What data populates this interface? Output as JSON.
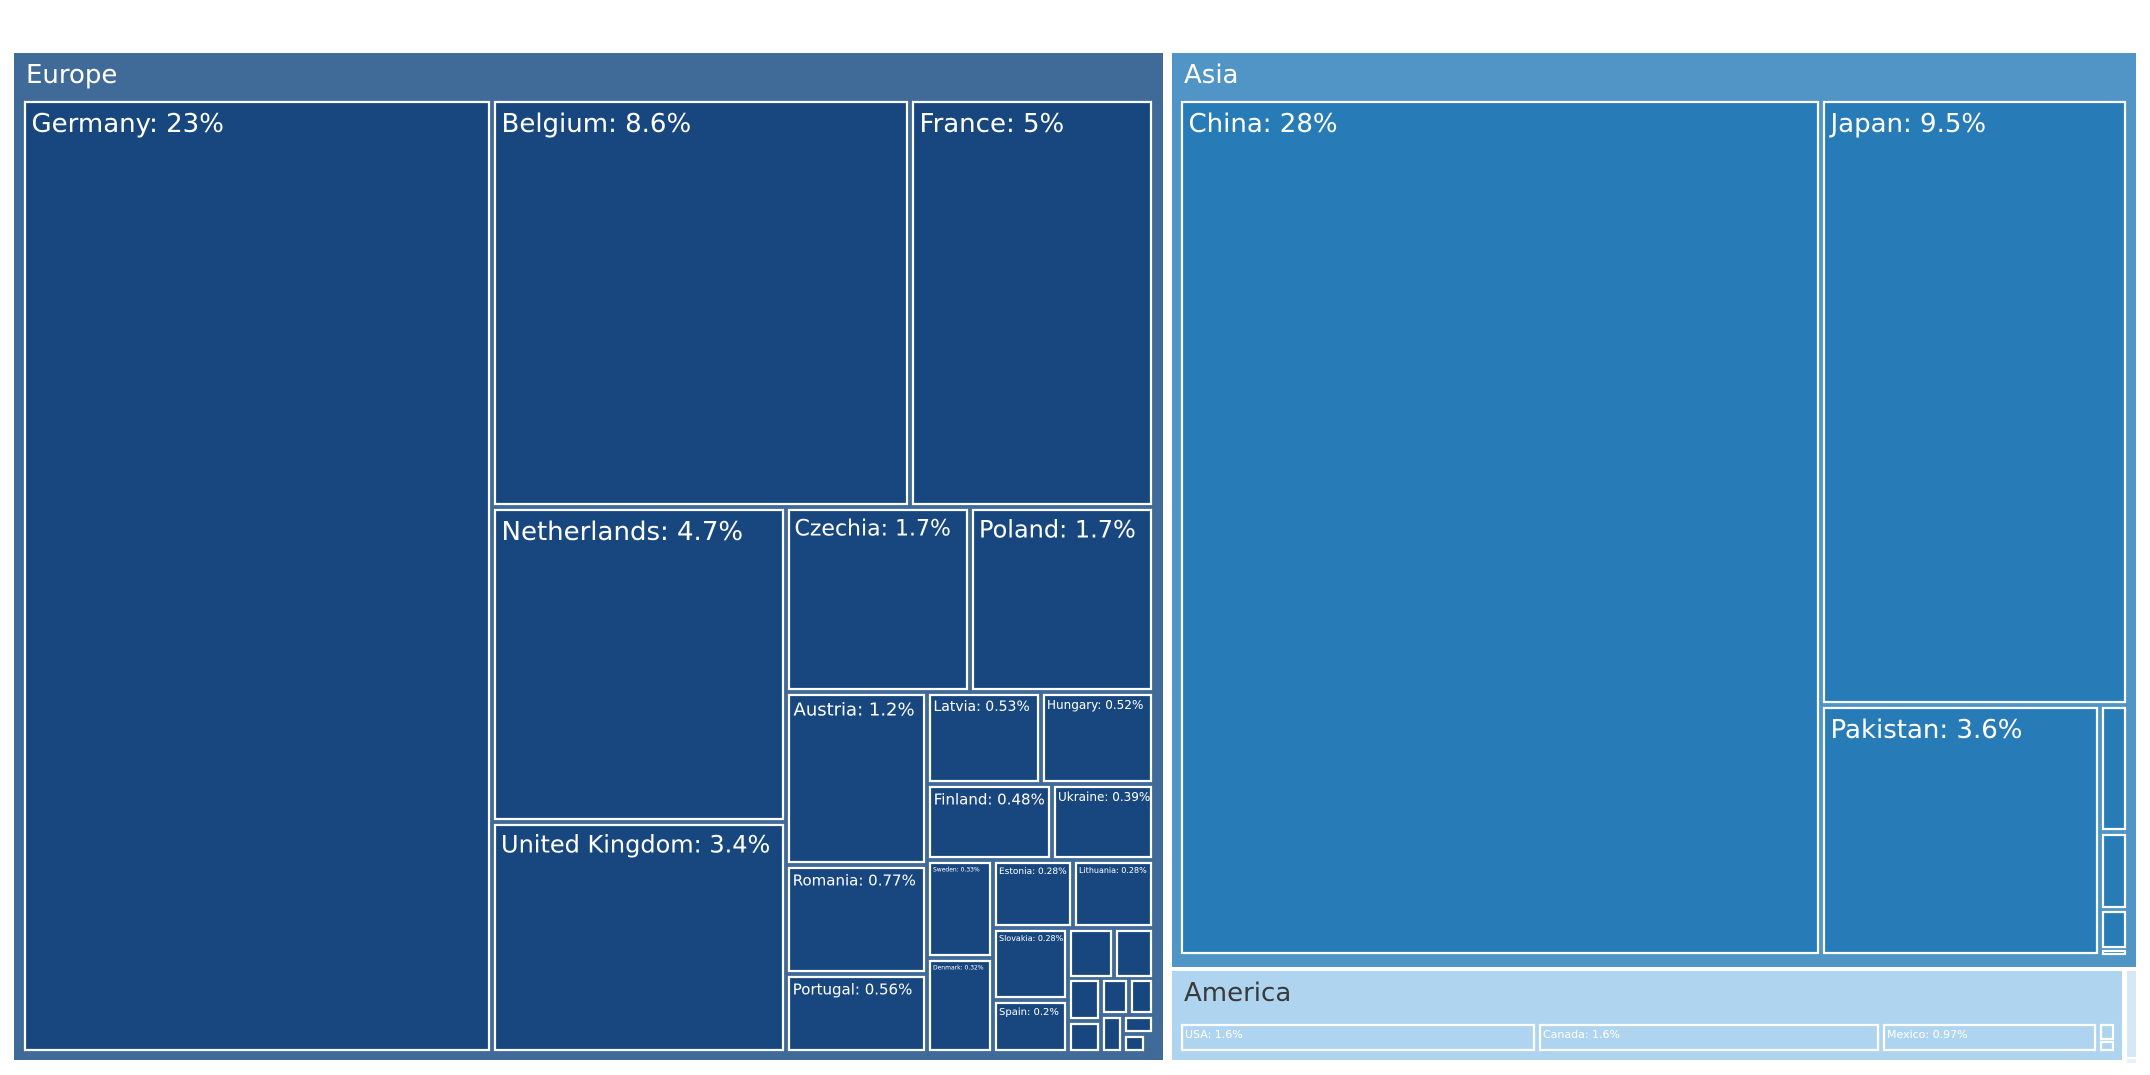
{
  "chart_data": {
    "type": "treemap",
    "unit": "%",
    "groups": [
      {
        "name": "Europe",
        "color": "#406a98",
        "cell_color": "#17477e",
        "label_color": "#ffffff",
        "items": [
          {
            "name": "Germany",
            "value": 23,
            "label": "Germany: 23%"
          },
          {
            "name": "Belgium",
            "value": 8.6,
            "label": "Belgium: 8.6%"
          },
          {
            "name": "France",
            "value": 5,
            "label": "France: 5%"
          },
          {
            "name": "Netherlands",
            "value": 4.7,
            "label": "Netherlands: 4.7%"
          },
          {
            "name": "Czechia",
            "value": 1.7,
            "label": "Czechia: 1.7%"
          },
          {
            "name": "Poland",
            "value": 1.7,
            "label": "Poland: 1.7%"
          },
          {
            "name": "United Kingdom",
            "value": 3.4,
            "label": "United Kingdom: 3.4%"
          },
          {
            "name": "Austria",
            "value": 1.2,
            "label": "Austria: 1.2%"
          },
          {
            "name": "Latvia",
            "value": 0.53,
            "label": "Latvia: 0.53%"
          },
          {
            "name": "Hungary",
            "value": 0.52,
            "label": "Hungary: 0.52%"
          },
          {
            "name": "Finland",
            "value": 0.48,
            "label": "Finland: 0.48%"
          },
          {
            "name": "Ukraine",
            "value": 0.39,
            "label": "Ukraine: 0.39%"
          },
          {
            "name": "Romania",
            "value": 0.77,
            "label": "Romania: 0.77%"
          },
          {
            "name": "Portugal",
            "value": 0.56,
            "label": "Portugal: 0.56%"
          },
          {
            "name": "Sweden",
            "value": 0.33,
            "label": "Sweden: 0.33%"
          },
          {
            "name": "Denmark",
            "value": 0.32,
            "label": "Denmark: 0.32%"
          },
          {
            "name": "Estonia",
            "value": 0.28,
            "label": "Estonia: 0.28%"
          },
          {
            "name": "Lithuania",
            "value": 0.28,
            "label": "Lithuania: 0.28%"
          },
          {
            "name": "Slovakia",
            "value": 0.28,
            "label": "Slovakia: 0.28%"
          },
          {
            "name": "Spain",
            "value": 0.2,
            "label": "Spain: 0.2%"
          },
          {
            "name": "",
            "value": null,
            "label": ""
          },
          {
            "name": "",
            "value": null,
            "label": ""
          },
          {
            "name": "",
            "value": null,
            "label": ""
          },
          {
            "name": "",
            "value": null,
            "label": ""
          },
          {
            "name": "",
            "value": null,
            "label": ""
          },
          {
            "name": "",
            "value": null,
            "label": ""
          },
          {
            "name": "",
            "value": null,
            "label": ""
          },
          {
            "name": "",
            "value": null,
            "label": ""
          },
          {
            "name": "",
            "value": null,
            "label": ""
          }
        ]
      },
      {
        "name": "Asia",
        "color": "#5195c6",
        "cell_color": "#277cb7",
        "label_color": "#ffffff",
        "items": [
          {
            "name": "China",
            "value": 28,
            "label": "China: 28%"
          },
          {
            "name": "Japan",
            "value": 9.5,
            "label": "Japan: 9.5%"
          },
          {
            "name": "Pakistan",
            "value": 3.6,
            "label": "Pakistan: 3.6%"
          },
          {
            "name": "",
            "value": null,
            "label": ""
          },
          {
            "name": "",
            "value": null,
            "label": ""
          },
          {
            "name": "",
            "value": null,
            "label": ""
          },
          {
            "name": "",
            "value": null,
            "label": ""
          }
        ]
      },
      {
        "name": "America",
        "color": "#aed4ef",
        "cell_color": "#aed4ef",
        "label_color": "#3a3a3a",
        "items": [
          {
            "name": "USA",
            "value": 1.6,
            "label": "USA: 1.6%"
          },
          {
            "name": "Canada",
            "value": 1.6,
            "label": "Canada: 1.6%"
          },
          {
            "name": "Mexico",
            "value": 0.97,
            "label": "Mexico: 0.97%"
          },
          {
            "name": "",
            "value": null,
            "label": ""
          },
          {
            "name": "",
            "value": null,
            "label": ""
          }
        ]
      },
      {
        "name": "",
        "color": "#d6e8f6",
        "cell_color": "#d6e8f6",
        "label_color": "#3a3a3a",
        "items": []
      },
      {
        "name": "",
        "color": "#e6f0f8",
        "cell_color": "#e6f0f8",
        "label_color": "#3a3a3a",
        "items": []
      }
    ]
  }
}
